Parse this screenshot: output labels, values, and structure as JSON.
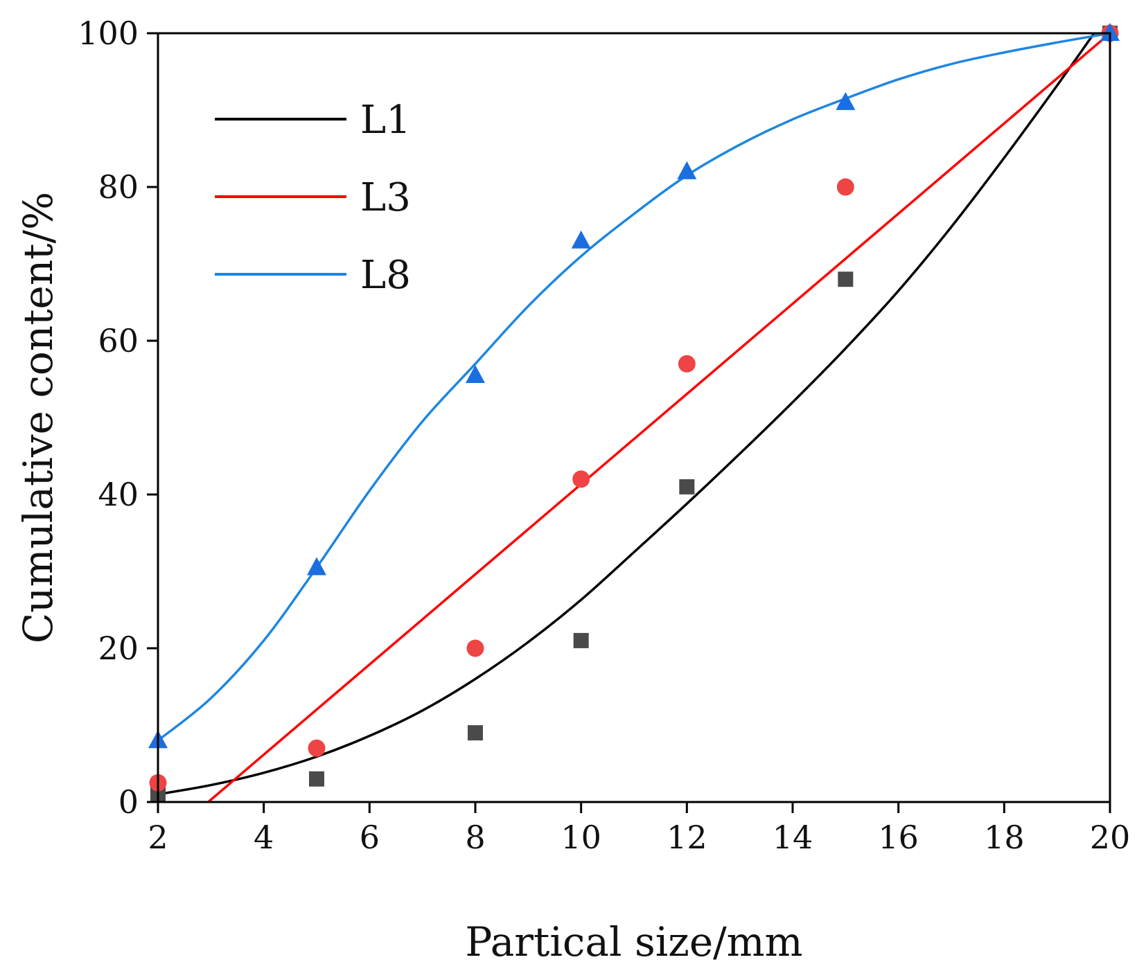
{
  "chart_data": {
    "type": "scatter",
    "title": "",
    "xlabel": "Partical size/mm",
    "ylabel": "Cumulative content/%",
    "xlim": [
      2,
      20
    ],
    "ylim": [
      0,
      100
    ],
    "xticks": [
      2,
      4,
      6,
      8,
      10,
      12,
      14,
      16,
      18,
      20
    ],
    "yticks": [
      0,
      20,
      40,
      60,
      80,
      100
    ],
    "grid": false,
    "legend_position": "top-left",
    "series": [
      {
        "name": "L1",
        "color": "#000000",
        "marker": "square",
        "marker_color": "#4a4a4a",
        "points": [
          [
            2,
            1
          ],
          [
            5,
            3
          ],
          [
            8,
            9
          ],
          [
            10,
            21
          ],
          [
            12,
            41
          ],
          [
            15,
            68
          ],
          [
            20,
            100
          ]
        ],
        "fit": [
          [
            2,
            1
          ],
          [
            3,
            2.2
          ],
          [
            4,
            3.8
          ],
          [
            5,
            5.9
          ],
          [
            6,
            8.6
          ],
          [
            7,
            11.9
          ],
          [
            8,
            16
          ],
          [
            9,
            20.8
          ],
          [
            10,
            26.3
          ],
          [
            11,
            32.5
          ],
          [
            12,
            38.8
          ],
          [
            13,
            45.3
          ],
          [
            14,
            52
          ],
          [
            15,
            59
          ],
          [
            16,
            66.5
          ],
          [
            17,
            74.8
          ],
          [
            18,
            83.8
          ],
          [
            19,
            93.2
          ],
          [
            19.7,
            100
          ]
        ]
      },
      {
        "name": "L3",
        "color": "#ff0000",
        "marker": "circle",
        "marker_color": "#ee4444",
        "points": [
          [
            2,
            2.5
          ],
          [
            5,
            7
          ],
          [
            8,
            20
          ],
          [
            10,
            42
          ],
          [
            12,
            57
          ],
          [
            15,
            80
          ],
          [
            20,
            100
          ]
        ],
        "fit": [
          [
            2.95,
            0
          ],
          [
            20,
            100
          ]
        ]
      },
      {
        "name": "L8",
        "color": "#1f86e0",
        "marker": "triangle",
        "marker_color": "#1a6fe0",
        "points": [
          [
            2,
            8
          ],
          [
            5,
            30.5
          ],
          [
            8,
            55.5
          ],
          [
            10,
            73
          ],
          [
            12,
            82
          ],
          [
            15,
            91
          ],
          [
            20,
            100
          ]
        ],
        "fit": [
          [
            2,
            8
          ],
          [
            3,
            13.5
          ],
          [
            4,
            21
          ],
          [
            5,
            30.5
          ],
          [
            6,
            40.5
          ],
          [
            7,
            49.5
          ],
          [
            8,
            57
          ],
          [
            9,
            64.5
          ],
          [
            10,
            71
          ],
          [
            11,
            76.5
          ],
          [
            12,
            81.5
          ],
          [
            13,
            85.5
          ],
          [
            14,
            88.8
          ],
          [
            15,
            91.5
          ],
          [
            16,
            94
          ],
          [
            17,
            96
          ],
          [
            18,
            97.5
          ],
          [
            19,
            98.8
          ],
          [
            20,
            100
          ]
        ]
      }
    ]
  }
}
